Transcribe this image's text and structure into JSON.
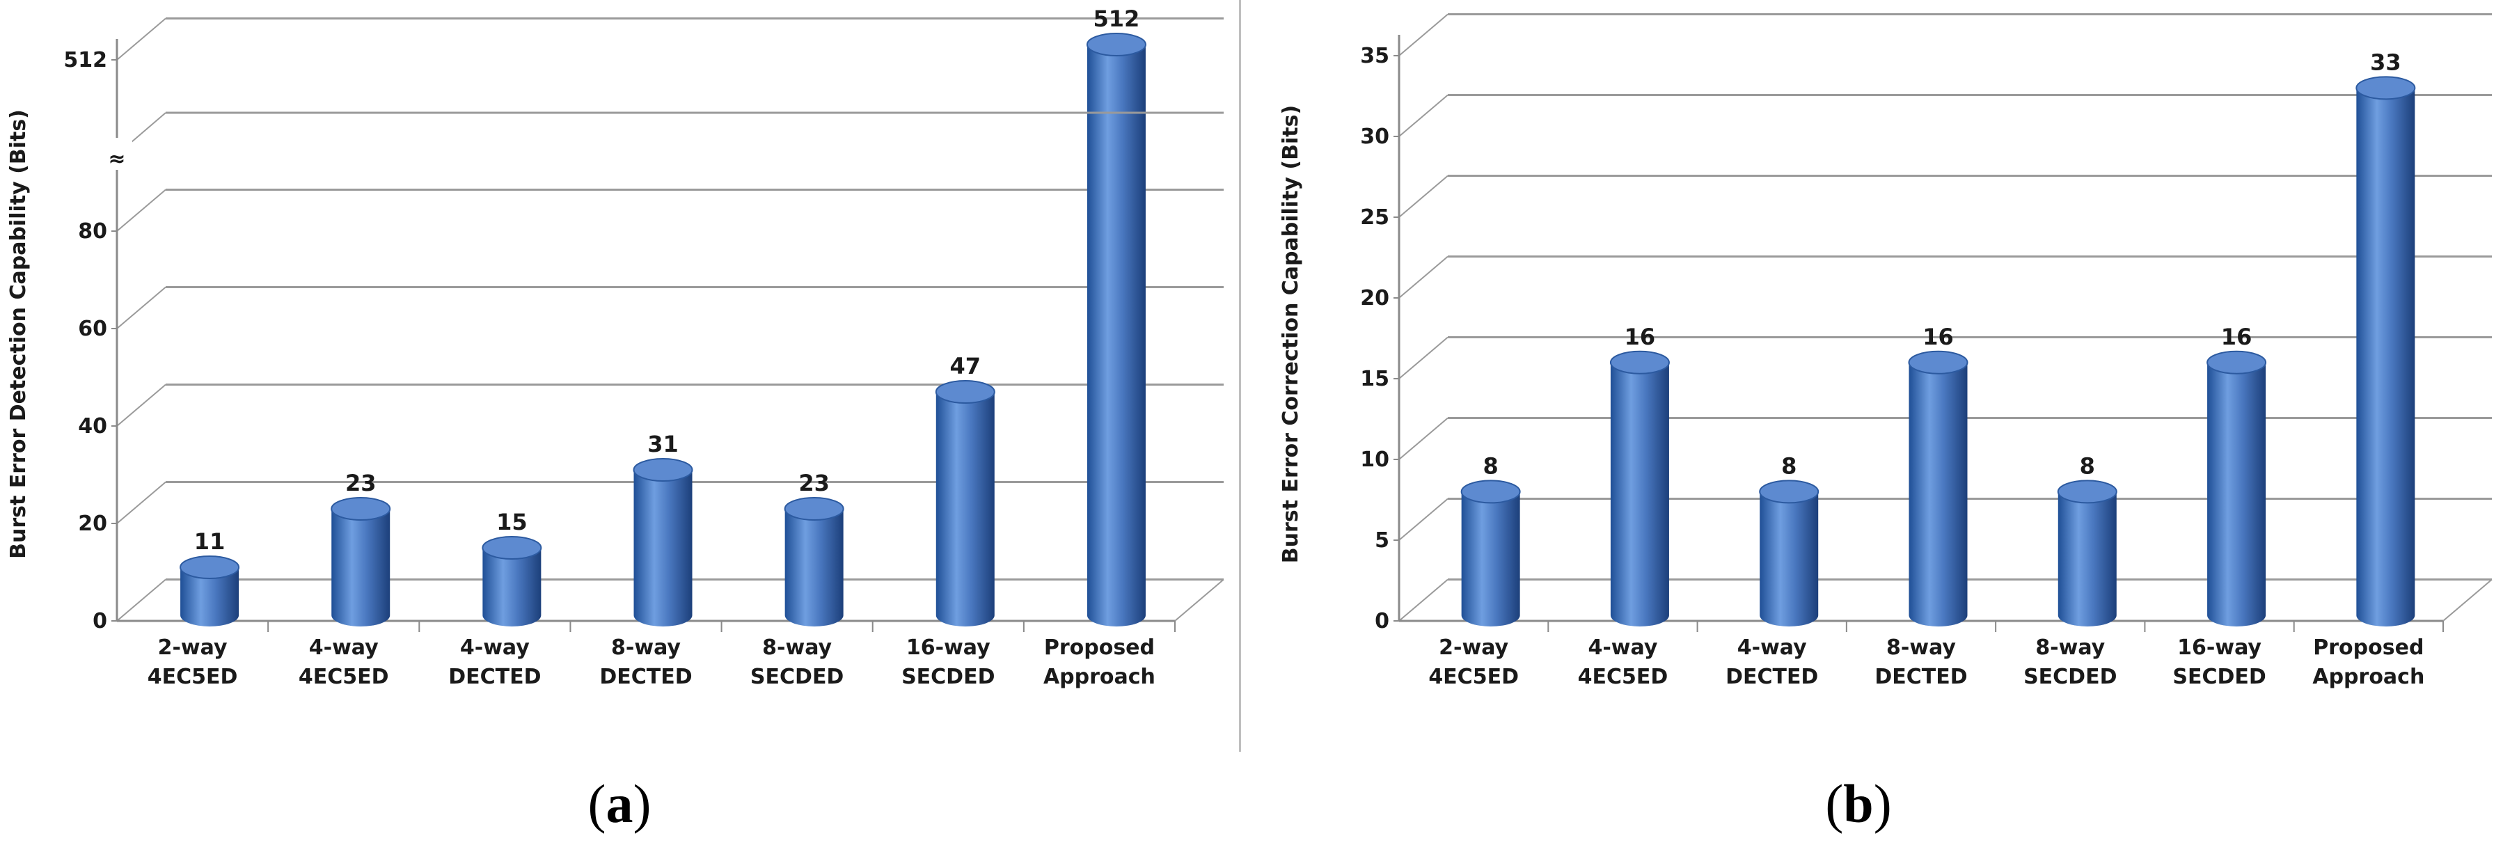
{
  "chart_data": [
    {
      "type": "bar",
      "panel_label": "a",
      "ylabel": "Burst Error Detection Capability (Bits)",
      "categories": [
        [
          "2-way",
          "4EC5ED"
        ],
        [
          "4-way",
          "4EC5ED"
        ],
        [
          "4-way",
          "DECTED"
        ],
        [
          "8-way",
          "DECTED"
        ],
        [
          "8-way",
          "SECDED"
        ],
        [
          "16-way",
          "SECDED"
        ],
        [
          "Proposed",
          "Approach"
        ]
      ],
      "values": [
        11,
        23,
        15,
        31,
        23,
        47,
        512
      ],
      "data_labels": [
        "11",
        "23",
        "15",
        "31",
        "23",
        "47",
        "512"
      ],
      "y_ticks": [
        "0",
        "20",
        "40",
        "60",
        "80",
        "512"
      ],
      "axis_break": "≈",
      "broken_axis": true,
      "ylim_lower": [
        0,
        100
      ],
      "grid": true,
      "color": "#4a78c0"
    },
    {
      "type": "bar",
      "panel_label": "b",
      "ylabel": "Burst Error Correction Capability (Bits)",
      "categories": [
        [
          "2-way",
          "4EC5ED"
        ],
        [
          "4-way",
          "4EC5ED"
        ],
        [
          "4-way",
          "DECTED"
        ],
        [
          "8-way",
          "DECTED"
        ],
        [
          "8-way",
          "SECDED"
        ],
        [
          "16-way",
          "SECDED"
        ],
        [
          "Proposed",
          "Approach"
        ]
      ],
      "values": [
        8,
        16,
        8,
        16,
        8,
        16,
        33
      ],
      "data_labels": [
        "8",
        "16",
        "8",
        "16",
        "8",
        "16",
        "33"
      ],
      "y_ticks": [
        "0",
        "5",
        "10",
        "15",
        "20",
        "25",
        "30",
        "35"
      ],
      "ylim": [
        0,
        35
      ],
      "grid": true,
      "color": "#4a78c0"
    }
  ]
}
